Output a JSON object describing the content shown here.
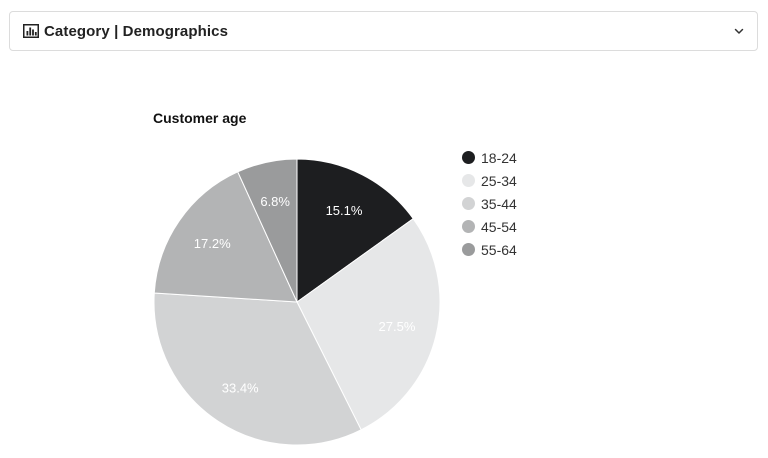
{
  "header": {
    "title": "Category | Demographics",
    "icon": "bar-chart-icon",
    "toggle_icon": "chevron-down-icon"
  },
  "chart_data": {
    "type": "pie",
    "title": "Customer age",
    "categories": [
      "18-24",
      "25-34",
      "35-44",
      "45-54",
      "55-64"
    ],
    "values": [
      15.1,
      27.5,
      33.4,
      17.2,
      6.8
    ],
    "labels": [
      "15.1%",
      "27.5%",
      "33.4%",
      "17.2%",
      "6.8%"
    ],
    "colors": [
      "#1d1e20",
      "#e6e7e8",
      "#d2d3d4",
      "#b3b4b5",
      "#9a9b9c"
    ],
    "label_colors": [
      "#ffffff",
      "#ffffff",
      "#ffffff",
      "#ffffff",
      "#ffffff"
    ],
    "legend_position": "right"
  }
}
